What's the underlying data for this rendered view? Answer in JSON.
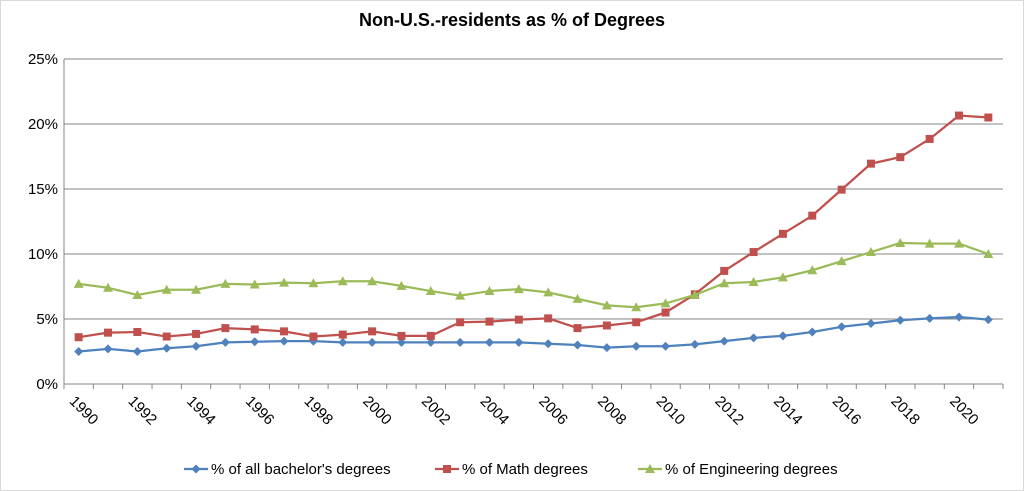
{
  "chart_data": {
    "type": "line",
    "title": "Non-U.S.-residents as % of Degrees",
    "xlabel": "",
    "ylabel": "",
    "x": [
      1990,
      1991,
      1992,
      1993,
      1994,
      1995,
      1996,
      1997,
      1998,
      1999,
      2000,
      2001,
      2002,
      2003,
      2004,
      2005,
      2006,
      2007,
      2008,
      2009,
      2010,
      2011,
      2012,
      2013,
      2014,
      2015,
      2016,
      2017,
      2018,
      2019,
      2020,
      2021
    ],
    "x_tick_labels": [
      "1990",
      "1992",
      "1994",
      "1996",
      "1998",
      "2000",
      "2002",
      "2004",
      "2006",
      "2008",
      "2010",
      "2012",
      "2014",
      "2016",
      "2018",
      "2020"
    ],
    "y_tick_labels": [
      "0%",
      "5%",
      "10%",
      "15%",
      "20%",
      "25%"
    ],
    "ylim": [
      0,
      25
    ],
    "grid": "horizontal",
    "legend_position": "bottom",
    "series": [
      {
        "name": "% of all bachelor's degrees",
        "color": "#4f81bd",
        "marker": "diamond",
        "values": [
          2.5,
          2.7,
          2.5,
          2.75,
          2.9,
          3.2,
          3.25,
          3.3,
          3.3,
          3.2,
          3.2,
          3.2,
          3.2,
          3.2,
          3.2,
          3.2,
          3.1,
          3.0,
          2.8,
          2.9,
          2.9,
          3.05,
          3.3,
          3.55,
          3.7,
          4.0,
          4.4,
          4.65,
          4.9,
          5.05,
          5.15,
          4.95
        ]
      },
      {
        "name": "% of Math degrees",
        "color": "#c0504d",
        "marker": "square",
        "values": [
          3.6,
          3.95,
          4.0,
          3.65,
          3.85,
          4.3,
          4.2,
          4.05,
          3.65,
          3.8,
          4.05,
          3.7,
          3.7,
          4.75,
          4.8,
          4.95,
          5.05,
          4.3,
          4.5,
          4.75,
          5.5,
          6.9,
          8.7,
          10.15,
          11.55,
          12.95,
          14.95,
          16.95,
          17.45,
          18.85,
          20.65,
          20.5
        ]
      },
      {
        "name": "% of Engineering degrees",
        "color": "#9bbb59",
        "marker": "triangle",
        "values": [
          7.7,
          7.4,
          6.85,
          7.25,
          7.25,
          7.7,
          7.65,
          7.8,
          7.75,
          7.9,
          7.9,
          7.55,
          7.15,
          6.8,
          7.15,
          7.3,
          7.05,
          6.55,
          6.05,
          5.9,
          6.2,
          6.85,
          7.75,
          7.85,
          8.2,
          8.75,
          9.45,
          10.15,
          10.85,
          10.8,
          10.8,
          10.0
        ]
      }
    ]
  }
}
